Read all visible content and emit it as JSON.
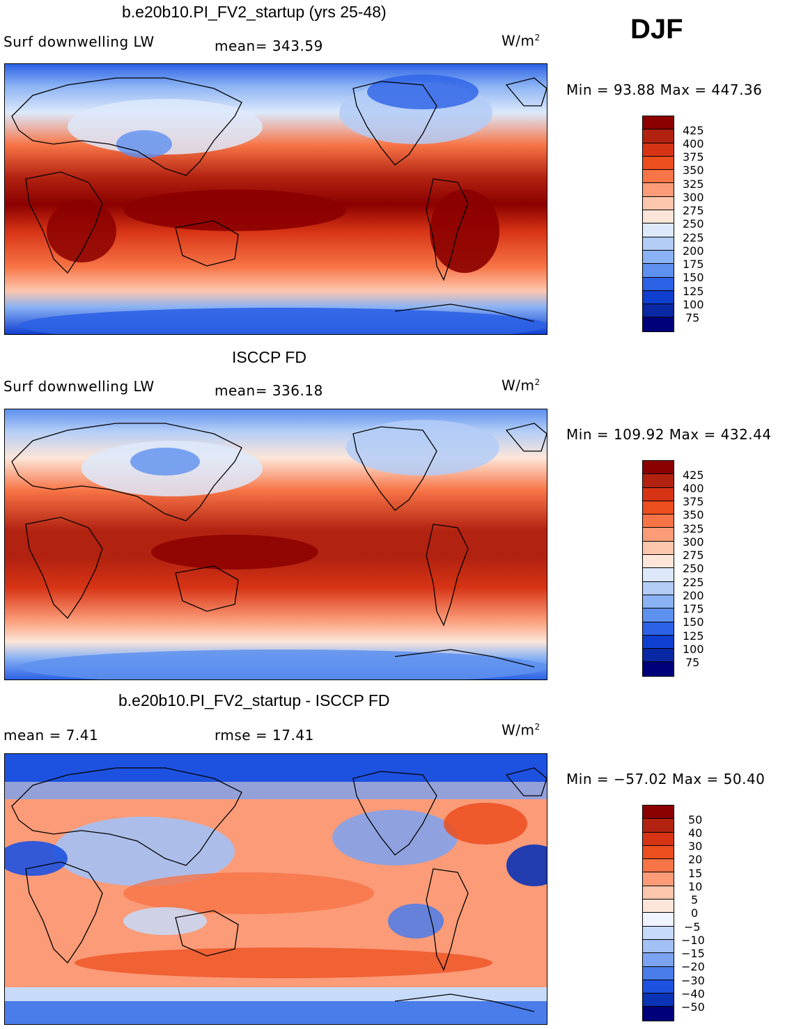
{
  "season": "DJF",
  "units": "W/m",
  "units_exp": "2",
  "panels": [
    {
      "title": "b.e20b10.PI_FV2_startup (yrs 25-48)",
      "label": "Surf downwelling LW",
      "stat": "mean= 343.59",
      "minmax": "Min =  93.88 Max = 447.36",
      "ticks": [
        "425",
        "400",
        "375",
        "350",
        "325",
        "300",
        "275",
        "250",
        "225",
        "200",
        "175",
        "150",
        "125",
        "100",
        "75"
      ]
    },
    {
      "title": "ISCCP FD",
      "label": "Surf downwelling LW",
      "stat": "mean= 336.18",
      "minmax": "Min = 109.92 Max = 432.44",
      "ticks": [
        "425",
        "400",
        "375",
        "350",
        "325",
        "300",
        "275",
        "250",
        "225",
        "200",
        "175",
        "150",
        "125",
        "100",
        "75"
      ]
    },
    {
      "title": "b.e20b10.PI_FV2_startup - ISCCP FD",
      "label": "mean =    7.41",
      "stat": "rmse =   17.41",
      "minmax": "Min = −57.02 Max =  50.40",
      "ticks": [
        "50",
        "40",
        "30",
        "20",
        "15",
        "10",
        "5",
        "0",
        "−5",
        "−10",
        "−15",
        "−20",
        "−30",
        "−40",
        "−50"
      ]
    }
  ],
  "colors": {
    "abs_scale": [
      "#8b0000",
      "#b22210",
      "#d73415",
      "#ec4e1e",
      "#f77446",
      "#fb9b78",
      "#fdc7ae",
      "#fde6d9",
      "#dde9fb",
      "#b3cdf7",
      "#8ab2f4",
      "#5e90ef",
      "#2c62e6",
      "#0f3fd0",
      "#0a28a4",
      "#00007a"
    ],
    "diff_scale": [
      "#8b0000",
      "#b22210",
      "#d73415",
      "#ec4e1e",
      "#f77446",
      "#fb9b78",
      "#fdc7ae",
      "#fde6d9",
      "#eef3fd",
      "#c7daf9",
      "#a3c1f5",
      "#7ba3f1",
      "#4a7dea",
      "#1d52e0",
      "#0a33b6",
      "#00007a"
    ]
  }
}
